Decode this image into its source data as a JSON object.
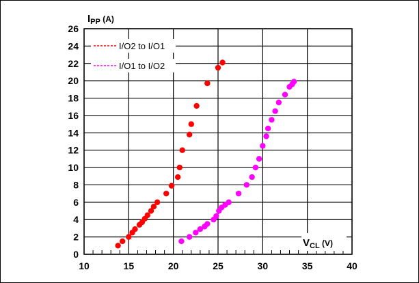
{
  "chart_data": {
    "type": "scatter",
    "ylabel": {
      "main": "I",
      "sub": "PP",
      "unit": " (A)"
    },
    "xlabel": {
      "main": "V",
      "sub": "CL",
      "unit": " (V)"
    },
    "xlim": [
      10,
      40
    ],
    "ylim": [
      0,
      26
    ],
    "xticks": [
      10,
      15,
      20,
      25,
      30,
      35,
      40
    ],
    "yticks": [
      0,
      2,
      4,
      6,
      8,
      10,
      12,
      14,
      16,
      18,
      20,
      22,
      24,
      26
    ],
    "grid": true,
    "legend_position": "top-left",
    "series": [
      {
        "name": "I/O2 to I/O1",
        "color": "#ff0000",
        "line_style": "dashed",
        "points": [
          [
            13.8,
            1.0
          ],
          [
            14.3,
            1.5
          ],
          [
            15.0,
            2.0
          ],
          [
            15.4,
            2.5
          ],
          [
            15.7,
            2.9
          ],
          [
            16.2,
            3.4
          ],
          [
            16.5,
            3.7
          ],
          [
            16.8,
            4.1
          ],
          [
            17.1,
            4.5
          ],
          [
            17.5,
            5.0
          ],
          [
            17.8,
            5.5
          ],
          [
            18.2,
            6.0
          ],
          [
            19.2,
            7.0
          ],
          [
            19.8,
            7.9
          ],
          [
            20.5,
            8.9
          ],
          [
            20.7,
            10.0
          ],
          [
            21.0,
            12.0
          ],
          [
            21.8,
            13.8
          ],
          [
            22.0,
            15.0
          ],
          [
            22.6,
            17.1
          ],
          [
            23.8,
            19.7
          ],
          [
            25.0,
            21.5
          ],
          [
            25.5,
            22.1
          ]
        ]
      },
      {
        "name": "I/O1 to I/O2",
        "color": "#ff00ff",
        "line_style": "dashed",
        "points": [
          [
            20.9,
            1.5
          ],
          [
            21.8,
            2.0
          ],
          [
            22.5,
            2.5
          ],
          [
            23.0,
            2.9
          ],
          [
            23.5,
            3.2
          ],
          [
            23.8,
            3.5
          ],
          [
            24.5,
            4.0
          ],
          [
            24.8,
            4.4
          ],
          [
            25.1,
            5.0
          ],
          [
            25.4,
            5.4
          ],
          [
            25.8,
            5.7
          ],
          [
            26.2,
            6.0
          ],
          [
            27.3,
            7.0
          ],
          [
            28.2,
            8.0
          ],
          [
            28.8,
            8.9
          ],
          [
            29.2,
            10.0
          ],
          [
            29.6,
            11.0
          ],
          [
            30.0,
            12.5
          ],
          [
            30.4,
            13.6
          ],
          [
            30.6,
            14.5
          ],
          [
            31.0,
            15.5
          ],
          [
            31.4,
            16.5
          ],
          [
            31.8,
            17.5
          ],
          [
            32.5,
            18.4
          ],
          [
            33.0,
            19.3
          ],
          [
            33.3,
            19.6
          ],
          [
            33.5,
            19.9
          ]
        ]
      }
    ]
  }
}
